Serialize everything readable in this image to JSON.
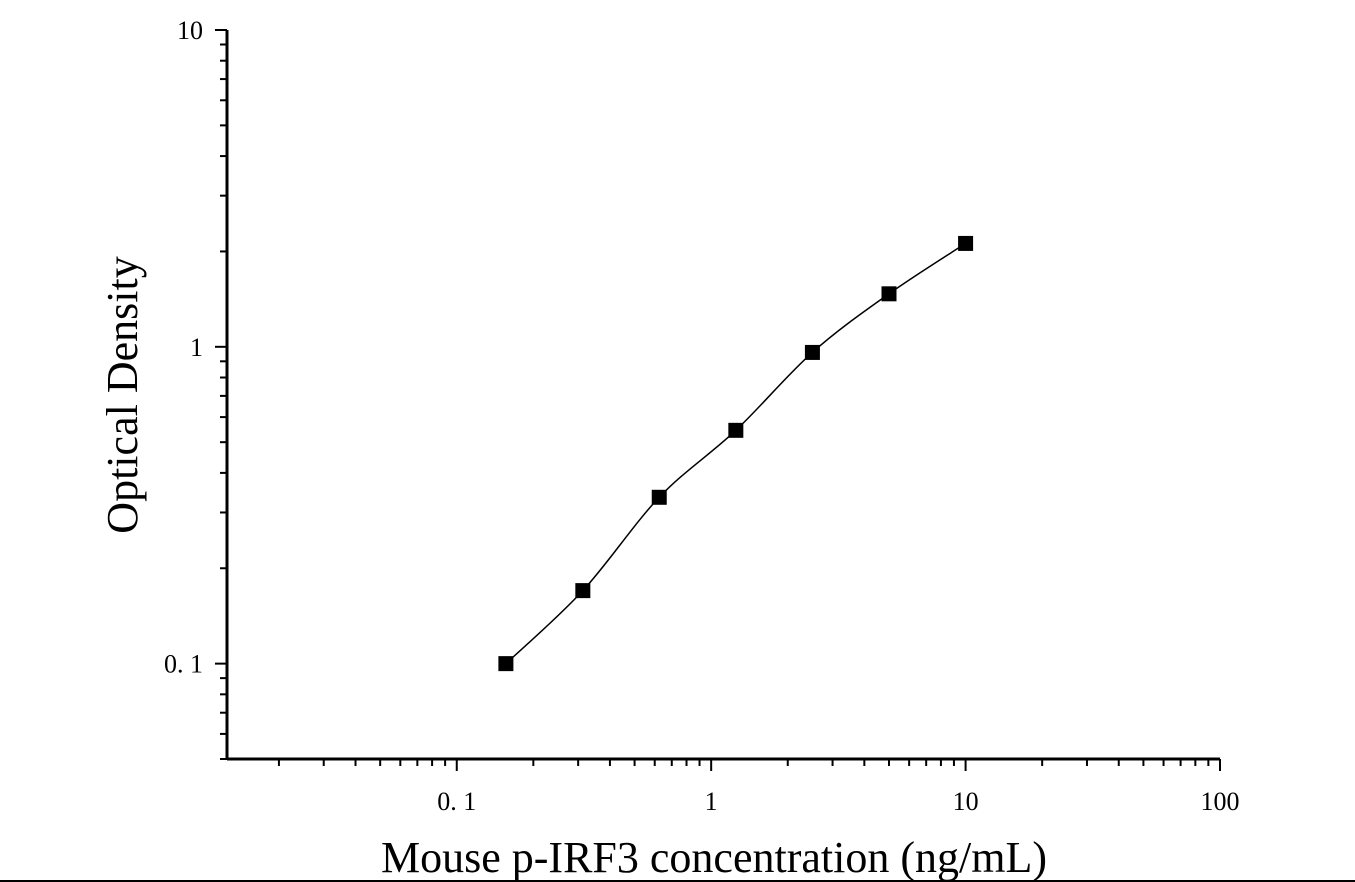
{
  "chart_data": {
    "type": "scatter",
    "xlabel": "Mouse p-IRF3 concentration (ng/mL)",
    "ylabel": "Optical Density",
    "x_scale": "log",
    "y_scale": "log",
    "xlim": [
      0.0125,
      100
    ],
    "ylim": [
      0.05,
      10
    ],
    "x_ticks": [
      {
        "value": 0.1,
        "label": "0. 1"
      },
      {
        "value": 1,
        "label": "1"
      },
      {
        "value": 10,
        "label": "10"
      },
      {
        "value": 100,
        "label": "100"
      }
    ],
    "y_ticks": [
      {
        "value": 0.1,
        "label": "0. 1"
      },
      {
        "value": 1,
        "label": "1"
      },
      {
        "value": 10,
        "label": "10"
      }
    ],
    "grid": false,
    "colors": {
      "marker": "#000000",
      "curve": "#000000",
      "axis": "#000000"
    },
    "series": [
      {
        "marker": "square",
        "fit": "smooth curve",
        "points": [
          {
            "x": 0.156,
            "y": 0.1
          },
          {
            "x": 0.313,
            "y": 0.17
          },
          {
            "x": 0.625,
            "y": 0.335
          },
          {
            "x": 1.25,
            "y": 0.545
          },
          {
            "x": 2.5,
            "y": 0.96
          },
          {
            "x": 5,
            "y": 1.47
          },
          {
            "x": 10,
            "y": 2.12
          }
        ]
      }
    ]
  }
}
